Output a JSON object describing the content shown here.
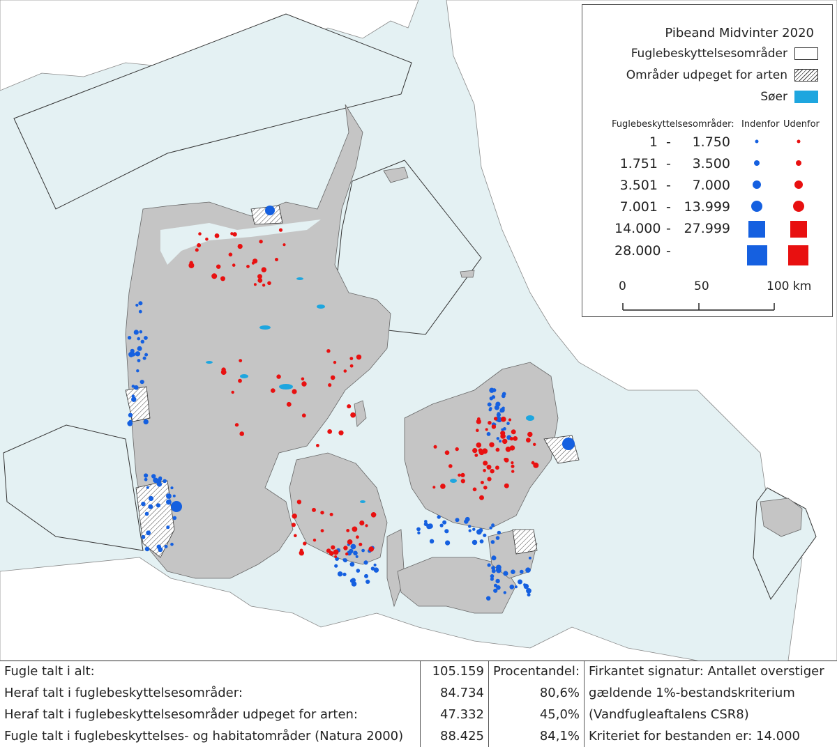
{
  "legend": {
    "title": "Pibeand Midvinter 2020",
    "items": [
      {
        "label": "Fuglebeskyttelsesområder",
        "symbol": "white-box-icon"
      },
      {
        "label": "Områder udpeget for arten",
        "symbol": "hatched-box-icon"
      },
      {
        "label": "Søer",
        "symbol": "lake-box-icon",
        "color": "#1ea6df"
      }
    ],
    "symbol_header": "Fuglebeskyttelsesområder:",
    "inside_label": "Indenfor",
    "outside_label": "Udenfor",
    "classes": [
      {
        "low": "1",
        "high": "1.750",
        "shape": "circle"
      },
      {
        "low": "1.751",
        "high": "3.500",
        "shape": "circle"
      },
      {
        "low": "3.501",
        "high": "7.000",
        "shape": "circle"
      },
      {
        "low": "7.001",
        "high": "13.999",
        "shape": "circle"
      },
      {
        "low": "14.000",
        "high": "27.999",
        "shape": "square"
      },
      {
        "low": "28.000",
        "high": "",
        "shape": "square"
      }
    ],
    "dash": "-",
    "inside_color": "#1560e0",
    "outside_color": "#e81010",
    "scale_labels": [
      "0",
      "50",
      "100 km"
    ]
  },
  "colors": {
    "sea": "#e4f1f3",
    "land": "#c5c5c5",
    "lake": "#1ea6df"
  },
  "stats": {
    "rows": [
      {
        "label": "Fugle talt i alt:",
        "value": "105.159",
        "pct": "Procentandel:",
        "note": "Firkantet signatur: Antallet overstiger"
      },
      {
        "label": "Heraf talt i fuglebeskyttelsesområder:",
        "value": "84.734",
        "pct": "80,6%",
        "note": "gældende 1%-bestandskriterium"
      },
      {
        "label": "Heraf talt i fuglebeskyttelsesområder udpeget for arten:",
        "value": "47.332",
        "pct": "45,0%",
        "note": "(Vandfugleaftalens CSR8)"
      },
      {
        "label": "Fugle talt i fuglebeskyttelses- og habitatområder (Natura 2000)",
        "value": "88.425",
        "pct": "84,1%",
        "note": "Kriteriet for bestanden er: 14.000"
      }
    ]
  }
}
